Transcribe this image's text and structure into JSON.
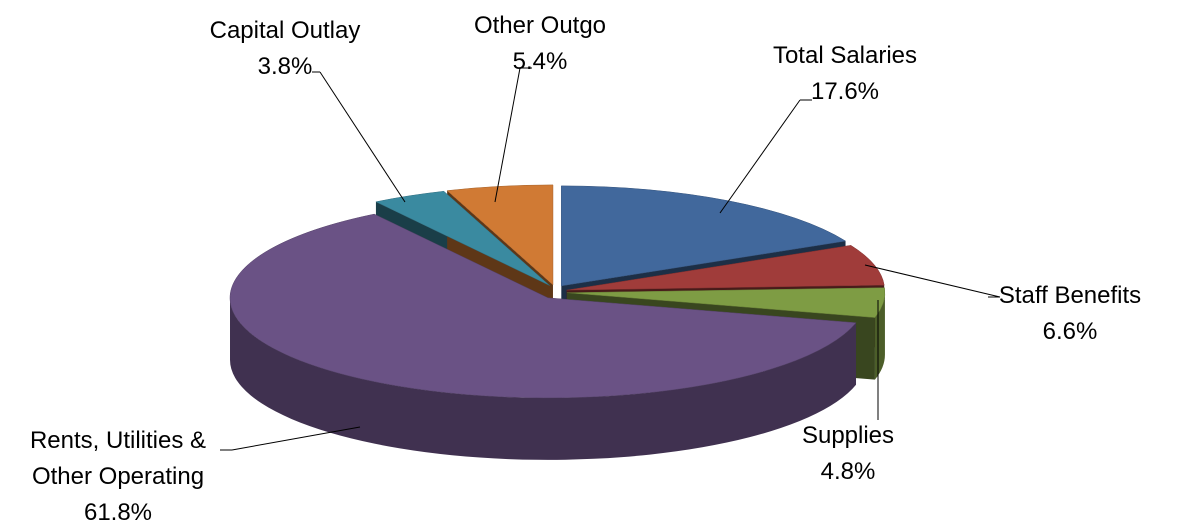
{
  "chart_data": {
    "type": "pie",
    "categories": [
      "Total Salaries",
      "Staff Benefits",
      "Supplies",
      "Rents, Utilities & Other Operating",
      "Capital Outlay",
      "Other Outgo"
    ],
    "values": [
      17.6,
      6.6,
      4.8,
      61.8,
      3.8,
      5.4
    ],
    "value_labels": [
      "17.6%",
      "6.6%",
      "4.8%",
      "61.8%",
      "3.8%",
      "5.4%"
    ],
    "colors": [
      "#41689c",
      "#a03c3a",
      "#7e9c44",
      "#6a5285",
      "#3a8aa0",
      "#d07a34"
    ]
  }
}
